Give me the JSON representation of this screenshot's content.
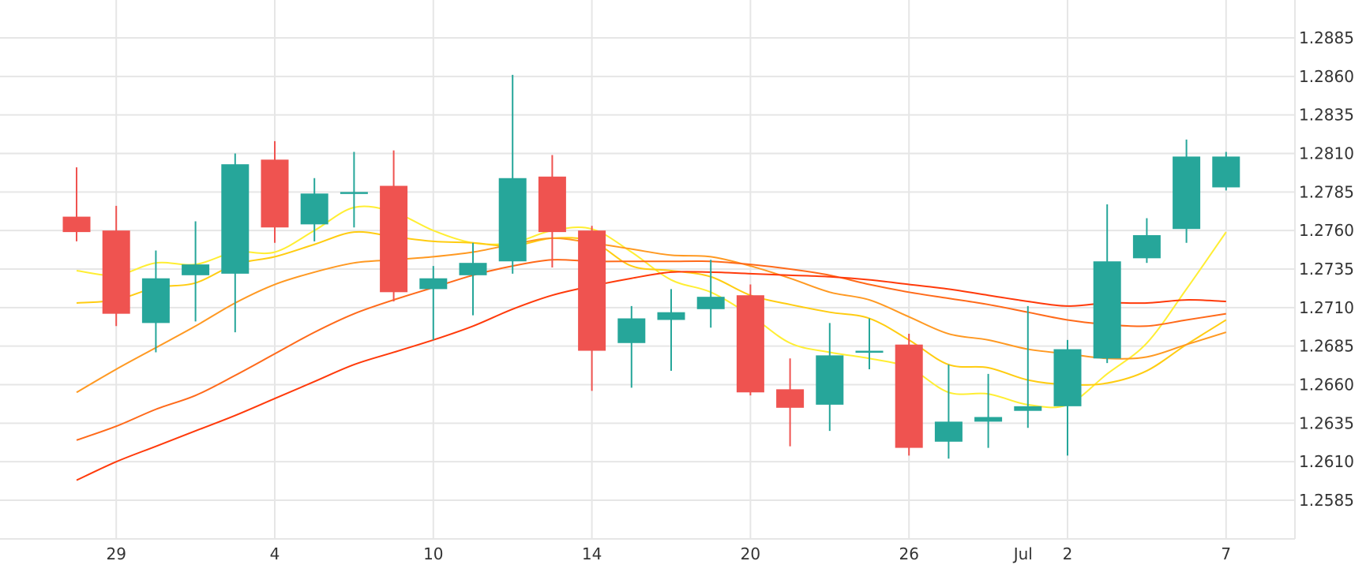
{
  "chart_data": {
    "type": "candlestick",
    "title": "",
    "xlabel": "",
    "ylabel": "",
    "ylim": [
      1.2562,
      1.2905
    ],
    "y_ticks": [
      "1.2585",
      "1.2610",
      "1.2635",
      "1.2660",
      "1.2685",
      "1.2710",
      "1.2735",
      "1.2760",
      "1.2785",
      "1.2810",
      "1.2835",
      "1.2860",
      "1.2885"
    ],
    "x_ticks": [
      {
        "index": 1,
        "label": "29"
      },
      {
        "index": 5,
        "label": "4"
      },
      {
        "index": 9,
        "label": "10"
      },
      {
        "index": 13,
        "label": "14"
      },
      {
        "index": 17,
        "label": "20"
      },
      {
        "index": 21,
        "label": "26"
      },
      {
        "index": 24,
        "label": "Jul"
      },
      {
        "index": 25,
        "label": "2"
      },
      {
        "index": 29,
        "label": "7"
      }
    ],
    "grid": true,
    "colors": {
      "up": "#26a69a",
      "down": "#ef5350",
      "grid": "#e6e6e6"
    },
    "candles": [
      {
        "o": 1.2769,
        "h": 1.2801,
        "l": 1.2753,
        "c": 1.2759
      },
      {
        "o": 1.276,
        "h": 1.2776,
        "l": 1.2698,
        "c": 1.2706
      },
      {
        "o": 1.27,
        "h": 1.2747,
        "l": 1.2681,
        "c": 1.2729
      },
      {
        "o": 1.2731,
        "h": 1.2766,
        "l": 1.2701,
        "c": 1.2738
      },
      {
        "o": 1.2732,
        "h": 1.281,
        "l": 1.2694,
        "c": 1.2803
      },
      {
        "o": 1.2806,
        "h": 1.2818,
        "l": 1.2752,
        "c": 1.2762
      },
      {
        "o": 1.2764,
        "h": 1.2794,
        "l": 1.2753,
        "c": 1.2784
      },
      {
        "o": 1.2785,
        "h": 1.2811,
        "l": 1.2762,
        "c": 1.2785
      },
      {
        "o": 1.2789,
        "h": 1.2812,
        "l": 1.2714,
        "c": 1.272
      },
      {
        "o": 1.2722,
        "h": 1.2737,
        "l": 1.2689,
        "c": 1.2729
      },
      {
        "o": 1.2731,
        "h": 1.2752,
        "l": 1.2705,
        "c": 1.2739
      },
      {
        "o": 1.274,
        "h": 1.2861,
        "l": 1.2732,
        "c": 1.2794
      },
      {
        "o": 1.2795,
        "h": 1.2809,
        "l": 1.2736,
        "c": 1.2759
      },
      {
        "o": 1.276,
        "h": 1.2763,
        "l": 1.2656,
        "c": 1.2682
      },
      {
        "o": 1.2687,
        "h": 1.2711,
        "l": 1.2658,
        "c": 1.2703
      },
      {
        "o": 1.2702,
        "h": 1.2722,
        "l": 1.2669,
        "c": 1.2707
      },
      {
        "o": 1.2709,
        "h": 1.2741,
        "l": 1.2697,
        "c": 1.2717
      },
      {
        "o": 1.2718,
        "h": 1.2725,
        "l": 1.2653,
        "c": 1.2655
      },
      {
        "o": 1.2657,
        "h": 1.2677,
        "l": 1.262,
        "c": 1.2645
      },
      {
        "o": 1.2647,
        "h": 1.27,
        "l": 1.263,
        "c": 1.2679
      },
      {
        "o": 1.2681,
        "h": 1.2703,
        "l": 1.267,
        "c": 1.2682
      },
      {
        "o": 1.2686,
        "h": 1.2693,
        "l": 1.2614,
        "c": 1.2619
      },
      {
        "o": 1.2623,
        "h": 1.2673,
        "l": 1.2612,
        "c": 1.2636
      },
      {
        "o": 1.2636,
        "h": 1.2667,
        "l": 1.2619,
        "c": 1.2639
      },
      {
        "o": 1.2643,
        "h": 1.2711,
        "l": 1.2632,
        "c": 1.2646
      },
      {
        "o": 1.2646,
        "h": 1.2689,
        "l": 1.2614,
        "c": 1.2683
      },
      {
        "o": 1.2677,
        "h": 1.2777,
        "l": 1.2674,
        "c": 1.274
      },
      {
        "o": 1.2742,
        "h": 1.2768,
        "l": 1.2739,
        "c": 1.2757
      },
      {
        "o": 1.2761,
        "h": 1.2819,
        "l": 1.2752,
        "c": 1.2808
      },
      {
        "o": 1.2788,
        "h": 1.2811,
        "l": 1.2786,
        "c": 1.2808
      }
    ],
    "lines": [
      {
        "color": "#ffee33",
        "values": [
          1.2734,
          1.2731,
          1.2739,
          1.2738,
          1.2746,
          1.2746,
          1.276,
          1.2775,
          1.2772,
          1.276,
          1.2752,
          1.2752,
          1.276,
          1.2761,
          1.2746,
          1.2728,
          1.272,
          1.2705,
          1.2687,
          1.2681,
          1.2677,
          1.2671,
          1.2655,
          1.2654,
          1.2647,
          1.2647,
          1.2667,
          1.2687,
          1.2722,
          1.2759
        ]
      },
      {
        "color": "#ffcc11",
        "values": [
          1.2713,
          1.2715,
          1.2723,
          1.2726,
          1.2738,
          1.2743,
          1.2751,
          1.2759,
          1.2756,
          1.2753,
          1.2752,
          1.275,
          1.2755,
          1.2753,
          1.2737,
          1.2734,
          1.273,
          1.2718,
          1.2712,
          1.2707,
          1.2703,
          1.2689,
          1.2673,
          1.2671,
          1.2663,
          1.266,
          1.2661,
          1.2669,
          1.2686,
          1.2702
        ]
      },
      {
        "color": "#ff9922",
        "values": [
          1.2655,
          1.267,
          1.2684,
          1.2698,
          1.2713,
          1.2725,
          1.2733,
          1.2739,
          1.2741,
          1.2743,
          1.2746,
          1.2751,
          1.2755,
          1.2752,
          1.2748,
          1.2744,
          1.2743,
          1.2737,
          1.2729,
          1.272,
          1.2715,
          1.2704,
          1.2693,
          1.2689,
          1.2683,
          1.268,
          1.2677,
          1.2678,
          1.2686,
          1.2694
        ]
      },
      {
        "color": "#ff6a1a",
        "values": [
          1.2624,
          1.2633,
          1.2644,
          1.2653,
          1.2666,
          1.268,
          1.2694,
          1.2706,
          1.2715,
          1.2723,
          1.2731,
          1.2737,
          1.2741,
          1.274,
          1.274,
          1.274,
          1.274,
          1.2738,
          1.2735,
          1.2731,
          1.2725,
          1.272,
          1.2716,
          1.2712,
          1.2707,
          1.2702,
          1.2699,
          1.2698,
          1.2702,
          1.2706
        ]
      },
      {
        "color": "#ff3a0a",
        "values": [
          1.2598,
          1.261,
          1.262,
          1.263,
          1.264,
          1.2651,
          1.2662,
          1.2673,
          1.2681,
          1.2689,
          1.2698,
          1.2709,
          1.2718,
          1.2724,
          1.2729,
          1.2733,
          1.2733,
          1.2732,
          1.2731,
          1.273,
          1.2728,
          1.2725,
          1.2722,
          1.2718,
          1.2714,
          1.2711,
          1.2713,
          1.2713,
          1.2715,
          1.2714
        ]
      }
    ]
  }
}
